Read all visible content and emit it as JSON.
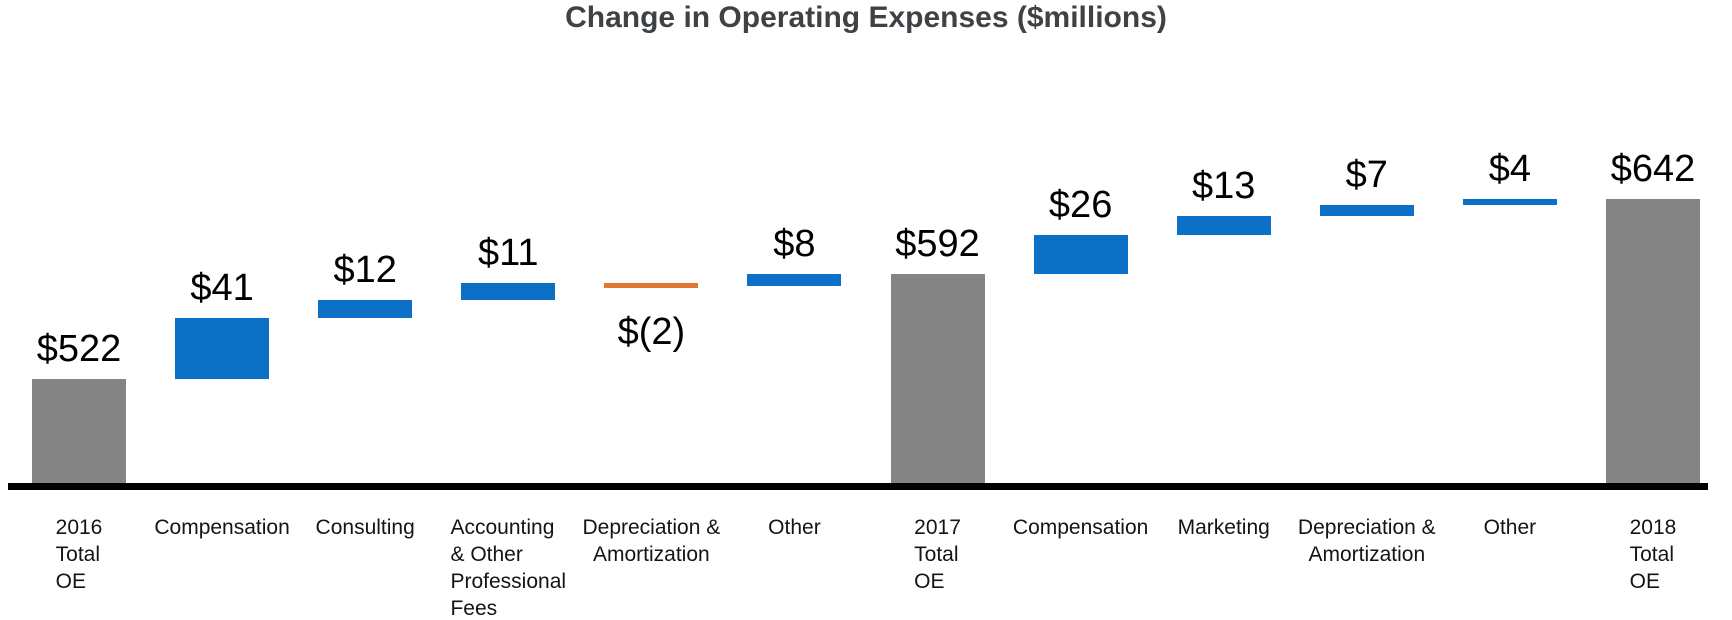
{
  "title": "Change in Operating Expenses ($millions)",
  "chart_data": {
    "type": "bar",
    "subtype": "waterfall",
    "title": "Change in Operating Expenses ($millions)",
    "unit": "$ millions",
    "legend": "none",
    "grid": "off",
    "axis_baseline_value": 450,
    "axis_range_hint": [
      450,
      700
    ],
    "series_note": "running total: 522 +41 +12 +11 -2 +8 = 592; 592 +26 +13 +7 +4 = 642",
    "bars": [
      {
        "name": "2016 Total OE",
        "label_lines": [
          "2016",
          "Total",
          "OE"
        ],
        "label_align": "left",
        "role": "total",
        "value": 522,
        "display_value": "$522",
        "value_label_position": "above"
      },
      {
        "name": "Compensation 2017",
        "label_lines": [
          "Compensation"
        ],
        "label_align": "center",
        "role": "increase",
        "value": 41,
        "display_value": "$41",
        "value_label_position": "above"
      },
      {
        "name": "Consulting",
        "label_lines": [
          "Consulting"
        ],
        "label_align": "center",
        "role": "increase",
        "value": 12,
        "display_value": "$12",
        "value_label_position": "above"
      },
      {
        "name": "Accounting and Other Professional Fees",
        "label_lines": [
          "Accounting",
          "& Other",
          "Professional",
          "Fees"
        ],
        "label_align": "left",
        "role": "increase",
        "value": 11,
        "display_value": "$11",
        "value_label_position": "above"
      },
      {
        "name": "Depreciation and Amortization 2017",
        "label_lines": [
          "Depreciation &",
          "Amortization"
        ],
        "label_align": "center",
        "role": "decrease",
        "value": -2,
        "display_value": "$(2)",
        "value_label_position": "below"
      },
      {
        "name": "Other 2017",
        "label_lines": [
          "Other"
        ],
        "label_align": "center",
        "role": "increase",
        "value": 8,
        "display_value": "$8",
        "value_label_position": "above"
      },
      {
        "name": "2017 Total OE",
        "label_lines": [
          "2017",
          "Total",
          "OE"
        ],
        "label_align": "left",
        "role": "total",
        "value": 592,
        "display_value": "$592",
        "value_label_position": "above"
      },
      {
        "name": "Compensation 2018",
        "label_lines": [
          "Compensation"
        ],
        "label_align": "center",
        "role": "increase",
        "value": 26,
        "display_value": "$26",
        "value_label_position": "above"
      },
      {
        "name": "Marketing",
        "label_lines": [
          "Marketing"
        ],
        "label_align": "center",
        "role": "increase",
        "value": 13,
        "display_value": "$13",
        "value_label_position": "above"
      },
      {
        "name": "Depreciation and Amortization 2018",
        "label_lines": [
          "Depreciation &",
          "Amortization"
        ],
        "label_align": "center",
        "role": "increase",
        "value": 7,
        "display_value": "$7",
        "value_label_position": "above"
      },
      {
        "name": "Other 2018",
        "label_lines": [
          "Other"
        ],
        "label_align": "center",
        "role": "increase",
        "value": 4,
        "display_value": "$4",
        "value_label_position": "above"
      },
      {
        "name": "2018 Total OE",
        "label_lines": [
          "2018",
          "Total",
          "OE"
        ],
        "label_align": "left",
        "role": "total",
        "value": 642,
        "display_value": "$642",
        "value_label_position": "above"
      }
    ],
    "colors": {
      "total": "#848484",
      "increase": "#0b70c6",
      "decrease": "#e0782f",
      "title": "#3f4245",
      "value_label": "#000000",
      "category_label": "#141414",
      "axis_line": "#000000",
      "background": "#ffffff"
    }
  }
}
